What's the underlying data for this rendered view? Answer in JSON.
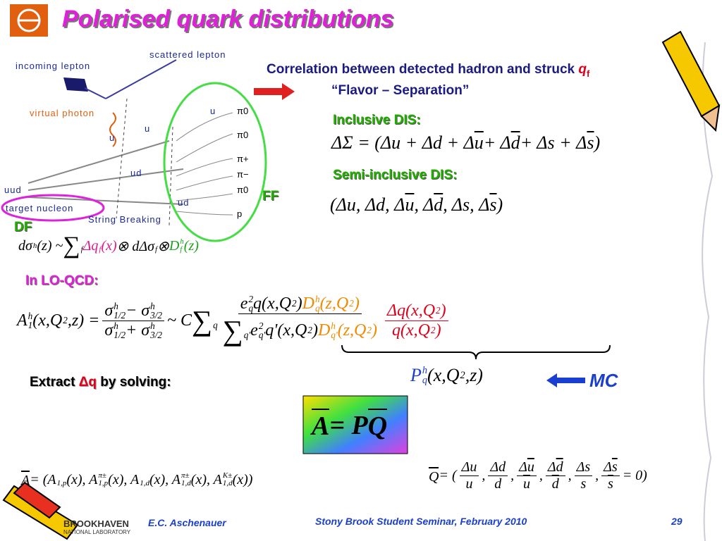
{
  "header": {
    "title": "Polarised quark distributions"
  },
  "diagram": {
    "incoming": "incoming lepton",
    "scattered": "scattered lepton",
    "photon": "virtual photon",
    "target": "target nucleon",
    "string": "String Breaking",
    "quarks": [
      "u",
      "u",
      "u",
      "ud",
      "uud",
      "ud"
    ],
    "hadrons": [
      "π0",
      "π0",
      "π+",
      "π−",
      "π0",
      "p"
    ],
    "df": "DF",
    "ff": "FF"
  },
  "right": {
    "correlation": "Correlation between detected hadron and struck ",
    "q": "q",
    "q_sub": "f",
    "flavor": "“Flavor – Separation”",
    "inclusive": {
      "label": "Inclusive DIS:",
      "formula": [
        {
          "t": "ΔΣ = (Δu + Δd + Δ"
        },
        {
          "t": "u",
          "bar": true
        },
        {
          "t": " + Δ"
        },
        {
          "t": "d",
          "bar": true
        },
        {
          "t": " + Δs + Δ"
        },
        {
          "t": "s",
          "bar": true
        },
        {
          "t": ")"
        }
      ]
    },
    "semi": {
      "label": "Semi-inclusive DIS:",
      "formula": [
        {
          "t": "(Δu, Δd, Δ"
        },
        {
          "t": "u",
          "bar": true
        },
        {
          "t": ", Δ"
        },
        {
          "t": "d",
          "bar": true
        },
        {
          "t": ", Δs, Δ"
        },
        {
          "t": "s",
          "bar": true
        },
        {
          "t": ")"
        }
      ]
    }
  },
  "cross_section": [
    {
      "t": "dσ",
      "sup": "h"
    },
    {
      "t": "(z) ~ "
    },
    {
      "t": "∑",
      "big": true,
      "sub": "f"
    },
    {
      "t": " Δq",
      "sub": "f",
      "color": "#e01b8a"
    },
    {
      "t": "(x)",
      "color": "#e01b8a"
    },
    {
      "t": " ⊗ dΔσ",
      "sub": "f"
    },
    {
      "t": " ⊗ "
    },
    {
      "t": "D",
      "sup": "h",
      "sub": "f",
      "color": "#1aa31a"
    },
    {
      "t": "(z)",
      "color": "#1aa31a"
    }
  ],
  "lo": {
    "label": "In LO-QCD:",
    "formula": [
      {
        "t": "A",
        "sup": "h",
        "sub": "1"
      },
      {
        "t": "(x,Q",
        "sup": "2"
      },
      {
        "t": ",z) = "
      },
      {
        "num": [
          {
            "t": "σ",
            "sup": "h",
            "sub": "1/2"
          },
          {
            "t": " − σ",
            "sup": "h",
            "sub": "3/2"
          }
        ],
        "den": [
          {
            "t": "σ",
            "sup": "h",
            "sub": "1/2"
          },
          {
            "t": " + σ",
            "sup": "h",
            "sub": "3/2"
          }
        ]
      },
      {
        "t": " ~ C"
      },
      {
        "t": "∑",
        "big": true,
        "sub": "q"
      },
      {
        "num": [
          {
            "t": "e",
            "sup": "2",
            "sub": "q"
          },
          {
            "t": "q(x,Q",
            "sup": "2"
          },
          {
            "t": ")"
          },
          {
            "t": "D",
            "sup": "h",
            "sub": "q",
            "color": "#f08a00"
          },
          {
            "t": "(z,Q",
            "sup": "2",
            "color": "#f08a00"
          },
          {
            "t": ")",
            "color": "#f08a00"
          }
        ],
        "den": [
          {
            "t": "∑",
            "big": true,
            "sub": "q'"
          },
          {
            "t": "e",
            "sup": "2",
            "sub": "q'"
          },
          {
            "t": "q'(x,Q",
            "sup": "2"
          },
          {
            "t": ")"
          },
          {
            "t": "D",
            "sup": "h",
            "sub": "q'",
            "color": "#f08a00"
          },
          {
            "t": "(z,Q",
            "sup": "2",
            "color": "#f08a00"
          },
          {
            "t": ")",
            "color": "#f08a00"
          }
        ]
      },
      {
        "num": [
          {
            "t": "Δq(x,Q",
            "sup": "2"
          },
          {
            "t": ")"
          }
        ],
        "den": [
          {
            "t": "q(x,Q",
            "sup": "2"
          },
          {
            "t": ")"
          }
        ],
        "color": "#e0001b"
      }
    ]
  },
  "extract": {
    "text": "Extract ",
    "dq": "Δq",
    "rest": " by solving:"
  },
  "purity": {
    "formula": [
      {
        "t": "P",
        "sup": "h",
        "sub": "q",
        "color": "#1a3fd0"
      },
      {
        "t": "(x,Q",
        "sup": "2"
      },
      {
        "t": ",z)"
      }
    ],
    "mc": "MC"
  },
  "apq": [
    {
      "t": "A",
      "vec": true
    },
    {
      "t": " = P"
    },
    {
      "t": "Q",
      "vec": true
    }
  ],
  "a_vector": [
    {
      "t": "A",
      "vec": true
    },
    {
      "t": " = (A",
      "sub": "1,p"
    },
    {
      "t": "(x), A",
      "sup": "π±",
      "sub": "1,p"
    },
    {
      "t": "(x), A",
      "sub": "1,d"
    },
    {
      "t": "(x), A",
      "sup": "π±",
      "sub": "1,d"
    },
    {
      "t": "(x), A",
      "sup": "K±",
      "sub": "1,d"
    },
    {
      "t": "(x))"
    }
  ],
  "q_vector": [
    {
      "t": "Q",
      "vec": true
    },
    {
      "t": " = ("
    },
    {
      "num": [
        {
          "t": "Δu"
        }
      ],
      "den": [
        {
          "t": "u"
        }
      ]
    },
    {
      "t": ","
    },
    {
      "num": [
        {
          "t": "Δd"
        }
      ],
      "den": [
        {
          "t": "d"
        }
      ]
    },
    {
      "t": ","
    },
    {
      "num": [
        {
          "t": "Δ"
        },
        {
          "t": "u",
          "bar": true
        }
      ],
      "den": [
        {
          "t": "u",
          "bar": true
        }
      ]
    },
    {
      "t": ","
    },
    {
      "num": [
        {
          "t": "Δ"
        },
        {
          "t": "d",
          "bar": true
        }
      ],
      "den": [
        {
          "t": "d",
          "bar": true
        }
      ]
    },
    {
      "t": ","
    },
    {
      "num": [
        {
          "t": "Δs"
        }
      ],
      "den": [
        {
          "t": "s"
        }
      ]
    },
    {
      "t": ","
    },
    {
      "num": [
        {
          "t": "Δ"
        },
        {
          "t": "s",
          "bar": true
        }
      ],
      "den": [
        {
          "t": "s",
          "bar": true
        }
      ]
    },
    {
      "t": " = 0)"
    }
  ],
  "footer": {
    "lab": "BROOKHAVEN",
    "lab_sub": "NATIONAL LABORATORY",
    "author": "E.C. Aschenauer",
    "event": "Stony Brook Student Seminar, February 2010",
    "page": "29"
  }
}
